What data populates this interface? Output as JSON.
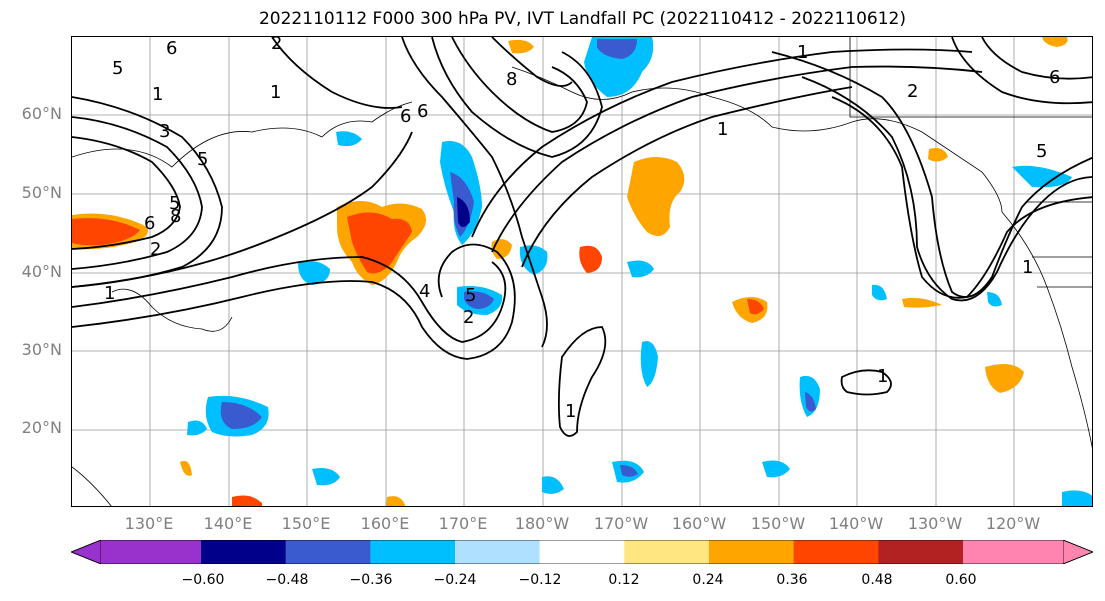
{
  "title": "2022110112 F000 300 hPa PV, IVT Landfall PC (2022110412 - 2022110612)",
  "lat_labels": [
    "60°N",
    "50°N",
    "40°N",
    "30°N",
    "20°N"
  ],
  "lon_labels": [
    "130°E",
    "140°E",
    "150°E",
    "160°E",
    "170°E",
    "180°W",
    "170°W",
    "160°W",
    "150°W",
    "140°W",
    "130°W",
    "120°W"
  ],
  "colorbar": {
    "colors": [
      "#9932cc",
      "#00008b",
      "#3a5bd0",
      "#00bfff",
      "#b0e0ff",
      "#ffffff",
      "#ffe680",
      "#ffa500",
      "#ff4500",
      "#b22222",
      "#ff85b0"
    ],
    "ticks": [
      "−0.60",
      "−0.48",
      "−0.36",
      "−0.24",
      "−0.12",
      "0.12",
      "0.24",
      "0.36",
      "0.48",
      "0.60"
    ]
  },
  "contour_labels": [
    "6",
    "2",
    "5",
    "1",
    "8",
    "6",
    "1",
    "2",
    "1",
    "3",
    "6",
    "2",
    "5",
    "8",
    "6",
    "1",
    "5",
    "4",
    "5",
    "2",
    "1",
    "1",
    "6",
    "5",
    "1",
    "1"
  ]
}
